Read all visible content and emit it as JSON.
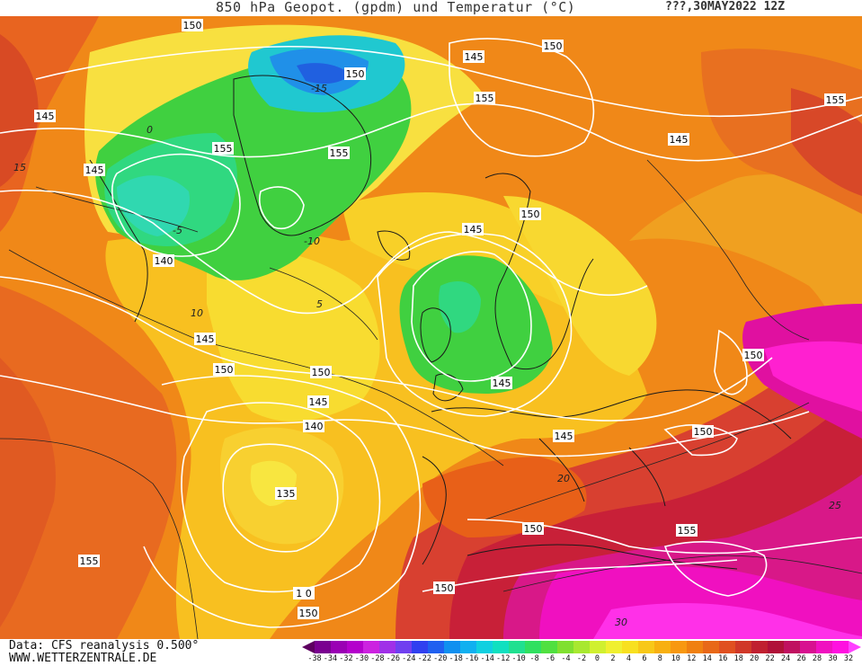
{
  "title": {
    "main": "850 hPa Geopot. (gpdm) und Temperatur (°C)",
    "date": "???,30MAY2022 12Z"
  },
  "footer": {
    "line1": "Data: CFS reanalysis 0.500°",
    "line2": "WWW.WETTERZENTRALE.DE"
  },
  "legend": {
    "ticks": [
      "-38",
      "-34",
      "-32",
      "-30",
      "-28",
      "-26",
      "-24",
      "-22",
      "-20",
      "-18",
      "-16",
      "-14",
      "-12",
      "-10",
      "-8",
      "-6",
      "-4",
      "-2",
      "0",
      "2",
      "4",
      "6",
      "8",
      "10",
      "12",
      "14",
      "16",
      "18",
      "20",
      "22",
      "24",
      "26",
      "28",
      "30",
      "32"
    ],
    "colors": [
      "#5e0060",
      "#7a0090",
      "#9a00b4",
      "#b400cc",
      "#cc22e0",
      "#a030e8",
      "#7040f0",
      "#3040f0",
      "#2060f0",
      "#1090f0",
      "#10b0f0",
      "#10d0e0",
      "#10e0c0",
      "#20e090",
      "#30e060",
      "#50e040",
      "#80e030",
      "#a8e830",
      "#d0f030",
      "#f0f030",
      "#f8e020",
      "#f8c818",
      "#f8b010",
      "#f89810",
      "#f08010",
      "#e86818",
      "#e05020",
      "#d03828",
      "#c02030",
      "#b01038",
      "#c01060",
      "#d81090",
      "#f010c0",
      "#ff10e0",
      "#ff40ff"
    ],
    "colors_note": "palette from purple (cold) to magenta (hot)"
  },
  "isohypse_labels": [
    {
      "text": "150",
      "key": "a"
    },
    {
      "text": "150",
      "key": "b"
    },
    {
      "text": "145",
      "key": "c"
    },
    {
      "text": "150",
      "key": "d"
    },
    {
      "text": "145",
      "key": "e"
    },
    {
      "text": "155",
      "key": "f"
    },
    {
      "text": "155",
      "key": "g"
    },
    {
      "text": "155",
      "key": "h"
    },
    {
      "text": "145",
      "key": "i"
    },
    {
      "text": "155",
      "key": "j"
    },
    {
      "text": "145",
      "key": "k"
    },
    {
      "text": "150",
      "key": "l"
    },
    {
      "text": "145",
      "key": "m"
    },
    {
      "text": "140",
      "key": "n"
    },
    {
      "text": "145",
      "key": "o"
    },
    {
      "text": "150",
      "key": "p"
    },
    {
      "text": "150",
      "key": "q"
    },
    {
      "text": "145",
      "key": "r"
    },
    {
      "text": "140",
      "key": "s"
    },
    {
      "text": "135",
      "key": "t"
    },
    {
      "text": "145",
      "key": "u"
    },
    {
      "text": "145",
      "key": "v"
    },
    {
      "text": "150",
      "key": "w"
    },
    {
      "text": "150",
      "key": "x"
    },
    {
      "text": "150",
      "key": "y"
    },
    {
      "text": "155",
      "key": "z"
    },
    {
      "text": "155",
      "key": "aa"
    },
    {
      "text": "150",
      "key": "bb"
    },
    {
      "text": "1 0",
      "key": "cc"
    },
    {
      "text": "150",
      "key": "dd"
    }
  ],
  "isotherm_labels": [
    "-15",
    "-10",
    "-5",
    "0",
    "5",
    "10",
    "15",
    "20",
    "25",
    "30"
  ],
  "colors": {
    "hot": "#e01080",
    "warm": "#e85a20",
    "mild": "#f5a020",
    "cool": "#f8e040",
    "cold": "#40d040",
    "coldest": "#2060e0"
  }
}
